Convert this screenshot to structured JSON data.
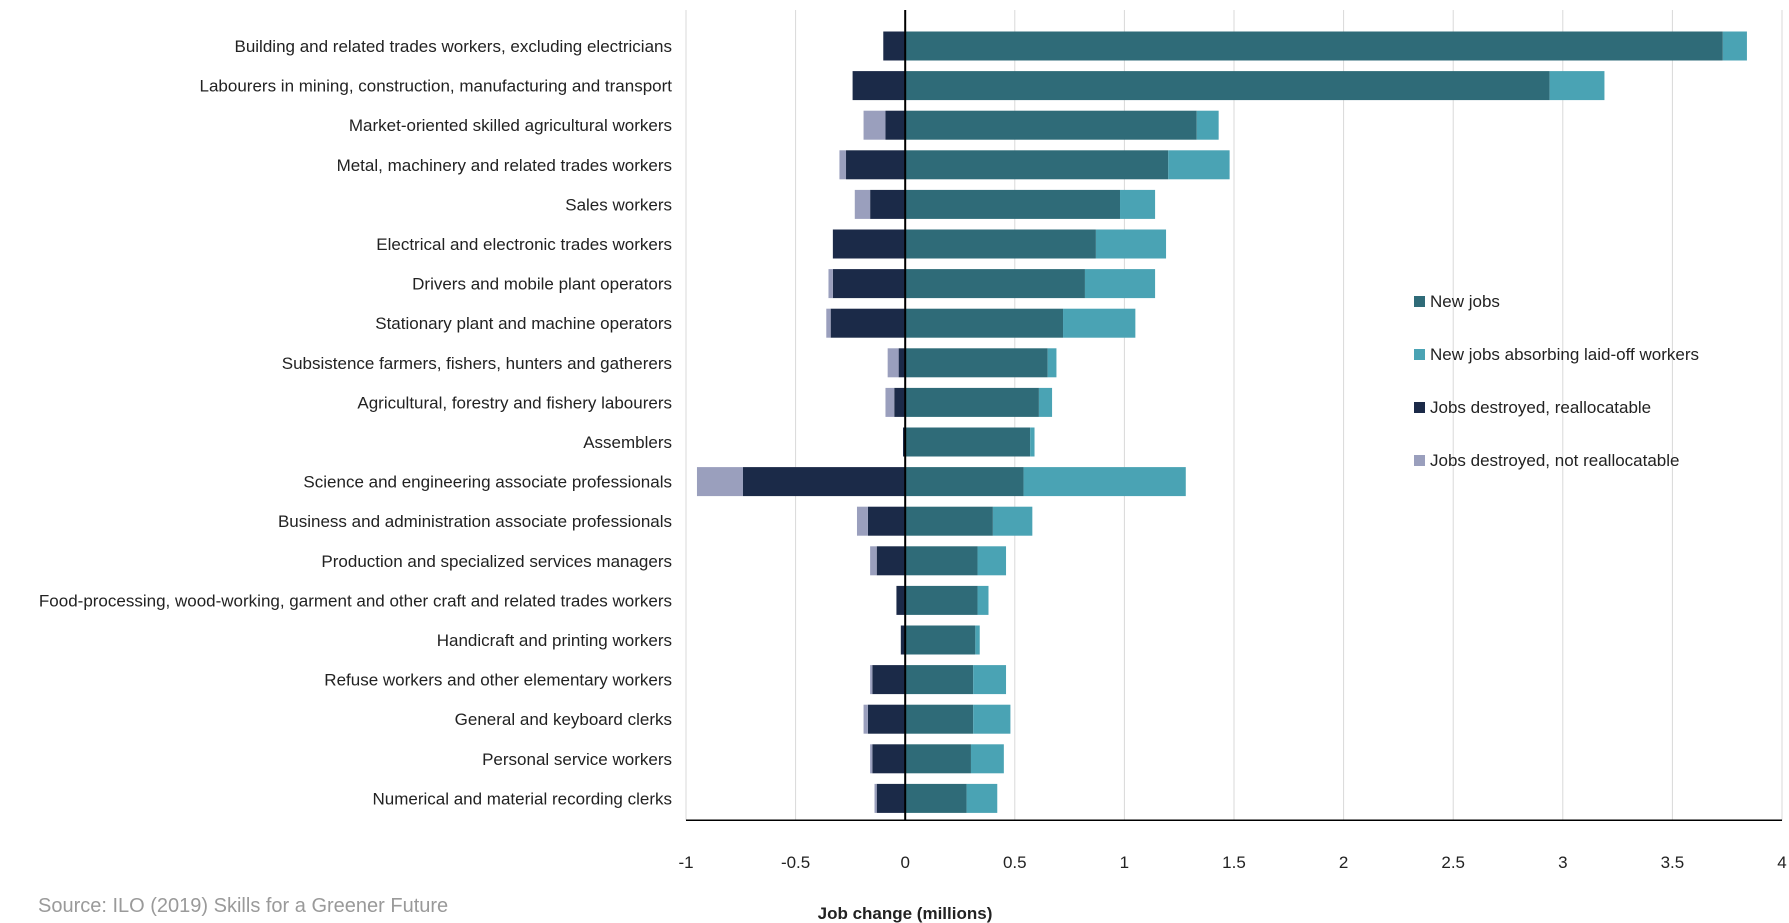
{
  "source_note": "Source: ILO (2019) Skills for a Greener Future",
  "colors": {
    "New jobs": "#2f6b78",
    "New jobs absorbing laid-off workers": "#4aa3b4",
    "Jobs destroyed, reallocatable": "#1b2a48",
    "Jobs destroyed, not reallocatable": "#9a9fbd",
    "grid": "#d9d9d9",
    "axis": "#000000"
  },
  "chart_data": {
    "type": "bar",
    "orientation": "horizontal",
    "stacked": true,
    "title": "",
    "xlabel": "Job change (millions)",
    "ylabel": "",
    "xlim": [
      -1,
      4
    ],
    "xticks": [
      -1,
      -0.5,
      0,
      0.5,
      1,
      1.5,
      2,
      2.5,
      3,
      3.5,
      4
    ],
    "xtick_labels": [
      "-1",
      "-0.5",
      "0",
      "0.5",
      "1",
      "1.5",
      "2",
      "2.5",
      "3",
      "3.5",
      "4"
    ],
    "grid": "vertical",
    "legend_position": "right",
    "categories": [
      "Building and related trades workers, excluding electricians",
      "Labourers in mining, construction, manufacturing and transport",
      "Market-oriented skilled agricultural workers",
      "Metal, machinery and related trades workers",
      "Sales workers",
      "Electrical and electronic trades workers",
      "Drivers and mobile plant operators",
      "Stationary plant and machine operators",
      "Subsistence farmers, fishers, hunters and gatherers",
      "Agricultural, forestry and fishery labourers",
      "Assemblers",
      "Science and engineering associate professionals",
      "Business and administration associate professionals",
      "Production and specialized services managers",
      "Food-processing, wood-working, garment and other craft and related trades workers",
      "Handicraft and printing workers",
      "Refuse workers and other elementary workers",
      "General and keyboard clerks",
      "Personal service workers",
      "Numerical and material recording clerks"
    ],
    "series": [
      {
        "name": "New jobs",
        "values": [
          3.73,
          2.94,
          1.33,
          1.2,
          0.98,
          0.87,
          0.82,
          0.72,
          0.65,
          0.61,
          0.57,
          0.54,
          0.4,
          0.33,
          0.33,
          0.32,
          0.31,
          0.31,
          0.3,
          0.28
        ]
      },
      {
        "name": "New jobs absorbing laid-off workers",
        "values": [
          0.11,
          0.25,
          0.1,
          0.28,
          0.16,
          0.32,
          0.32,
          0.33,
          0.04,
          0.06,
          0.02,
          0.74,
          0.18,
          0.13,
          0.05,
          0.02,
          0.15,
          0.17,
          0.15,
          0.14
        ]
      },
      {
        "name": "Jobs destroyed, reallocatable",
        "values": [
          -0.1,
          -0.24,
          -0.09,
          -0.27,
          -0.16,
          -0.33,
          -0.33,
          -0.34,
          -0.03,
          -0.05,
          -0.01,
          -0.74,
          -0.17,
          -0.13,
          -0.04,
          -0.02,
          -0.15,
          -0.17,
          -0.15,
          -0.13
        ]
      },
      {
        "name": "Jobs destroyed, not reallocatable",
        "values": [
          0,
          0,
          -0.1,
          -0.03,
          -0.07,
          0,
          -0.02,
          -0.02,
          -0.05,
          -0.04,
          0,
          -0.21,
          -0.05,
          -0.03,
          0,
          0,
          -0.01,
          -0.02,
          -0.01,
          -0.01
        ]
      }
    ]
  }
}
